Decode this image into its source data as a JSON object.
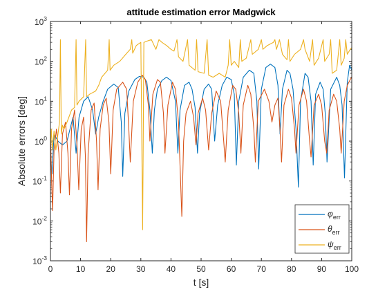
{
  "chart_data": {
    "type": "line",
    "title": "attitude estimation error Madgwick",
    "xlabel": "t [s]",
    "ylabel": "Absolute errors [deg]",
    "xlim": [
      0,
      100
    ],
    "ylim": [
      0.001,
      1000
    ],
    "yscale": "log",
    "grid": false,
    "legend_position": "bottom-right",
    "xticks": [
      0,
      10,
      20,
      30,
      40,
      50,
      60,
      70,
      80,
      90,
      100
    ],
    "xtick_labels": [
      "0",
      "10",
      "20",
      "30",
      "40",
      "50",
      "60",
      "70",
      "80",
      "90",
      "100"
    ],
    "yticks": [
      0.001,
      0.01,
      0.1,
      1,
      10,
      100,
      1000
    ],
    "ytick_labels": [
      {
        "base": "10",
        "exp": "-3"
      },
      {
        "base": "10",
        "exp": "-2"
      },
      {
        "base": "10",
        "exp": "-1"
      },
      {
        "base": "10",
        "exp": "0"
      },
      {
        "base": "10",
        "exp": "1"
      },
      {
        "base": "10",
        "exp": "2"
      },
      {
        "base": "10",
        "exp": "3"
      }
    ],
    "series": [
      {
        "name": "φ",
        "subscript": "err",
        "color": "#0072BD",
        "points": [
          [
            0,
            0.5
          ],
          [
            0.5,
            0.15
          ],
          [
            1.2,
            1.5
          ],
          [
            2.5,
            1.0
          ],
          [
            4,
            0.8
          ],
          [
            5.5,
            1.0
          ],
          [
            6.5,
            2.0
          ],
          [
            7.5,
            4.0
          ],
          [
            8.5,
            0.5
          ],
          [
            9.5,
            4.0
          ],
          [
            11,
            10
          ],
          [
            12.5,
            13
          ],
          [
            14,
            6
          ],
          [
            15,
            1.5
          ],
          [
            16,
            4
          ],
          [
            17.5,
            10
          ],
          [
            19,
            20
          ],
          [
            21,
            27
          ],
          [
            22.5,
            22
          ],
          [
            23.5,
            3
          ],
          [
            24,
            0.13
          ],
          [
            24.7,
            5
          ],
          [
            26,
            18
          ],
          [
            28,
            35
          ],
          [
            29.5,
            42
          ],
          [
            31,
            40
          ],
          [
            32,
            30
          ],
          [
            33,
            6
          ],
          [
            33.8,
            0.5
          ],
          [
            34.5,
            6
          ],
          [
            35.5,
            20
          ],
          [
            37,
            33
          ],
          [
            38.5,
            40
          ],
          [
            40,
            33
          ],
          [
            41.5,
            10
          ],
          [
            42.3,
            0.5
          ],
          [
            43,
            6
          ],
          [
            44.5,
            25
          ],
          [
            46,
            30
          ],
          [
            47,
            20
          ],
          [
            48,
            7
          ],
          [
            48.8,
            0.5
          ],
          [
            49.5,
            5
          ],
          [
            51,
            20
          ],
          [
            52.5,
            27
          ],
          [
            53.5,
            20
          ],
          [
            54.5,
            1.0
          ],
          [
            55.5,
            8
          ],
          [
            57,
            25
          ],
          [
            58.5,
            40
          ],
          [
            60,
            35
          ],
          [
            61,
            15
          ],
          [
            61.7,
            0.25
          ],
          [
            62.5,
            10
          ],
          [
            64,
            40
          ],
          [
            66,
            60
          ],
          [
            67.5,
            50
          ],
          [
            68.5,
            10
          ],
          [
            69.1,
            0.2
          ],
          [
            70,
            20
          ],
          [
            71.5,
            70
          ],
          [
            73,
            85
          ],
          [
            74.5,
            70
          ],
          [
            75.5,
            25
          ],
          [
            76.2,
            1.5
          ],
          [
            77,
            20
          ],
          [
            78.5,
            60
          ],
          [
            79.5,
            50
          ],
          [
            80.5,
            20
          ],
          [
            81.5,
            2
          ],
          [
            82.3,
            0.07
          ],
          [
            83,
            10
          ],
          [
            84.5,
            50
          ],
          [
            85.5,
            40
          ],
          [
            86.5,
            10
          ],
          [
            87.2,
            0.25
          ],
          [
            88,
            15
          ],
          [
            89.5,
            30
          ],
          [
            90.5,
            20
          ],
          [
            91.2,
            5
          ],
          [
            91.8,
            0.3
          ],
          [
            93,
            20
          ],
          [
            95,
            40
          ],
          [
            96,
            25
          ],
          [
            96.8,
            8
          ],
          [
            97.6,
            0.12
          ],
          [
            98.5,
            30
          ],
          [
            99.3,
            80
          ],
          [
            100,
            60
          ]
        ]
      },
      {
        "name": "θ",
        "subscript": "err",
        "color": "#D95319",
        "points": [
          [
            0,
            1.5
          ],
          [
            0.4,
            0.1
          ],
          [
            0.7,
            0.018
          ],
          [
            1.2,
            0.6
          ],
          [
            2,
            2
          ],
          [
            2.8,
            0.5
          ],
          [
            3.3,
            0.05
          ],
          [
            4,
            1.5
          ],
          [
            5,
            3
          ],
          [
            5.8,
            0.5
          ],
          [
            6.3,
            0.045
          ],
          [
            7,
            2
          ],
          [
            8,
            6
          ],
          [
            8.8,
            0.8
          ],
          [
            9.4,
            0.06
          ],
          [
            10.2,
            2
          ],
          [
            11,
            4
          ],
          [
            11.6,
            0.4
          ],
          [
            12,
            0.003
          ],
          [
            12.5,
            0.5
          ],
          [
            13.5,
            6
          ],
          [
            14.5,
            9
          ],
          [
            15.3,
            1
          ],
          [
            15.8,
            0.06
          ],
          [
            16.5,
            2
          ],
          [
            17.5,
            8
          ],
          [
            18.5,
            12
          ],
          [
            19.4,
            3
          ],
          [
            20,
            0.15
          ],
          [
            20.8,
            6
          ],
          [
            22,
            20
          ],
          [
            24,
            30
          ],
          [
            25.3,
            20
          ],
          [
            26,
            2
          ],
          [
            26.5,
            0.3
          ],
          [
            27.5,
            10
          ],
          [
            29,
            30
          ],
          [
            30.5,
            45
          ],
          [
            31.5,
            35
          ],
          [
            32.5,
            8
          ],
          [
            33,
            1
          ],
          [
            34,
            15
          ],
          [
            35.5,
            35
          ],
          [
            36.5,
            30
          ],
          [
            37.5,
            5
          ],
          [
            38,
            0.5
          ],
          [
            39,
            8
          ],
          [
            40.5,
            30
          ],
          [
            41.5,
            20
          ],
          [
            42.5,
            3
          ],
          [
            43,
            0.25
          ],
          [
            43.6,
            0.013
          ],
          [
            44.2,
            1
          ],
          [
            45,
            5
          ],
          [
            46.5,
            10
          ],
          [
            47.5,
            4
          ],
          [
            48.3,
            0.8
          ],
          [
            49,
            5
          ],
          [
            50.5,
            12
          ],
          [
            51.5,
            6
          ],
          [
            52.5,
            0.6
          ],
          [
            53.5,
            5
          ],
          [
            55,
            18
          ],
          [
            56.5,
            10
          ],
          [
            57.5,
            1
          ],
          [
            58,
            0.3
          ],
          [
            59,
            6
          ],
          [
            60.5,
            25
          ],
          [
            61.5,
            20
          ],
          [
            62.5,
            5
          ],
          [
            63.2,
            0.5
          ],
          [
            64,
            8
          ],
          [
            65.5,
            25
          ],
          [
            66.5,
            15
          ],
          [
            67.5,
            2
          ],
          [
            68,
            0.3
          ],
          [
            69,
            10
          ],
          [
            71,
            20
          ],
          [
            72.5,
            10
          ],
          [
            73.5,
            3
          ],
          [
            74.5,
            8
          ],
          [
            75.5,
            12
          ],
          [
            76.2,
            2
          ],
          [
            76.7,
            0.3
          ],
          [
            77.5,
            8
          ],
          [
            79,
            20
          ],
          [
            80,
            12
          ],
          [
            81,
            2
          ],
          [
            81.5,
            0.5
          ],
          [
            82.5,
            8
          ],
          [
            84,
            20
          ],
          [
            85,
            10
          ],
          [
            86,
            1
          ],
          [
            86.5,
            0.4
          ],
          [
            87.5,
            8
          ],
          [
            89,
            15
          ],
          [
            90,
            8
          ],
          [
            91,
            1
          ],
          [
            91.7,
            0.5
          ],
          [
            92.5,
            6
          ],
          [
            94,
            15
          ],
          [
            95,
            10
          ],
          [
            96,
            2
          ],
          [
            96.5,
            0.5
          ],
          [
            97.5,
            10
          ],
          [
            98.5,
            25
          ],
          [
            99.5,
            35
          ],
          [
            100,
            40
          ]
        ]
      },
      {
        "name": "ψ",
        "subscript": "err",
        "color": "#EDB120",
        "points": [
          [
            0,
            0.8
          ],
          [
            0.3,
            2
          ],
          [
            0.6,
            0.6
          ],
          [
            1.2,
            1.8
          ],
          [
            1.8,
            0.6
          ],
          [
            2.5,
            1.5
          ],
          [
            3,
            3
          ],
          [
            3.3,
            350
          ],
          [
            3.6,
            1.5
          ],
          [
            4,
            2.5
          ],
          [
            4.5,
            2
          ],
          [
            5.5,
            3
          ],
          [
            7,
            6
          ],
          [
            8,
            7
          ],
          [
            8.5,
            350
          ],
          [
            8.8,
            8
          ],
          [
            9.5,
            10
          ],
          [
            11,
            13
          ],
          [
            11.7,
            350
          ],
          [
            12,
            13
          ],
          [
            13,
            15
          ],
          [
            15,
            18
          ],
          [
            16,
            25
          ],
          [
            17,
            40
          ],
          [
            19,
            60
          ],
          [
            19.5,
            350
          ],
          [
            19.8,
            60
          ],
          [
            21,
            80
          ],
          [
            23,
            100
          ],
          [
            25,
            150
          ],
          [
            26.5,
            200
          ],
          [
            27,
            350
          ],
          [
            27.3,
            160
          ],
          [
            28.5,
            250
          ],
          [
            30,
            300
          ],
          [
            30.6,
            0.006
          ],
          [
            31,
            300
          ],
          [
            32,
            320
          ],
          [
            33.5,
            350
          ],
          [
            35,
            200
          ],
          [
            36,
            350
          ],
          [
            37,
            300
          ],
          [
            38.5,
            250
          ],
          [
            40,
            200
          ],
          [
            41,
            180
          ],
          [
            42,
            350
          ],
          [
            42.5,
            130
          ],
          [
            44,
            100
          ],
          [
            45.5,
            350
          ],
          [
            46,
            80
          ],
          [
            48,
            60
          ],
          [
            48.5,
            350
          ],
          [
            49,
            55
          ],
          [
            51,
            50
          ],
          [
            52,
            350
          ],
          [
            52.5,
            45
          ],
          [
            54,
            40
          ],
          [
            56,
            50
          ],
          [
            58,
            40
          ],
          [
            59,
            80
          ],
          [
            59.5,
            350
          ],
          [
            60,
            80
          ],
          [
            61,
            100
          ],
          [
            62.5,
            70
          ],
          [
            63,
            350
          ],
          [
            63.5,
            100
          ],
          [
            65,
            120
          ],
          [
            66.5,
            350
          ],
          [
            67,
            150
          ],
          [
            69,
            200
          ],
          [
            70,
            350
          ],
          [
            70.5,
            200
          ],
          [
            72,
            250
          ],
          [
            74,
            300
          ],
          [
            74.5,
            350
          ],
          [
            75,
            200
          ],
          [
            76,
            350
          ],
          [
            77,
            150
          ],
          [
            78.5,
            110
          ],
          [
            79,
            350
          ],
          [
            79.5,
            100
          ],
          [
            81,
            150
          ],
          [
            83,
            200
          ],
          [
            84,
            350
          ],
          [
            84.5,
            200
          ],
          [
            86,
            100
          ],
          [
            87,
            350
          ],
          [
            87.5,
            80
          ],
          [
            89,
            120
          ],
          [
            90.5,
            350
          ],
          [
            91,
            100
          ],
          [
            92.5,
            150
          ],
          [
            93,
            350
          ],
          [
            93.5,
            50
          ],
          [
            95,
            60
          ],
          [
            96,
            350
          ],
          [
            96.5,
            80
          ],
          [
            97.5,
            120
          ],
          [
            98,
            350
          ],
          [
            98.5,
            150
          ],
          [
            99.5,
            200
          ],
          [
            100,
            220
          ]
        ]
      }
    ]
  }
}
